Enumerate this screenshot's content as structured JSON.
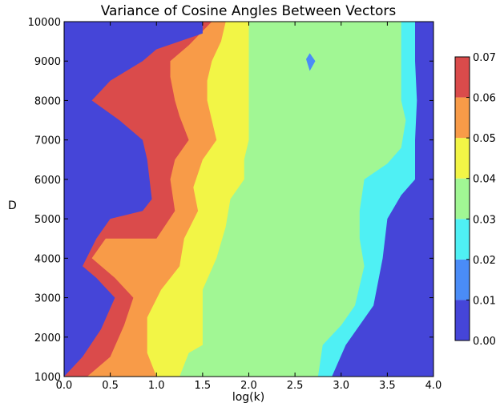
{
  "chart_data": {
    "type": "contourf",
    "title": "Variance of Cosine Angles Between Vectors",
    "xlabel": "log(k)",
    "ylabel": "D",
    "xlim": [
      0.0,
      4.0
    ],
    "ylim": [
      1000,
      10000
    ],
    "x_ticks": [
      "0.0",
      "0.5",
      "1.0",
      "1.5",
      "2.0",
      "2.5",
      "3.0",
      "3.5",
      "4.0"
    ],
    "y_ticks": [
      "1000",
      "2000",
      "3000",
      "4000",
      "5000",
      "6000",
      "7000",
      "8000",
      "9000",
      "10000"
    ],
    "colorbar": {
      "ticks": [
        "0.00",
        "0.01",
        "0.02",
        "0.03",
        "0.04",
        "0.05",
        "0.06",
        "0.07"
      ],
      "levels": [
        {
          "from": 0.0,
          "to": 0.01,
          "color": "#4545d8"
        },
        {
          "from": 0.01,
          "to": 0.02,
          "color": "#4a8cf7"
        },
        {
          "from": 0.02,
          "to": 0.03,
          "color": "#4ff0f4"
        },
        {
          "from": 0.03,
          "to": 0.04,
          "color": "#a1f794"
        },
        {
          "from": 0.04,
          "to": 0.05,
          "color": "#f2f546"
        },
        {
          "from": 0.05,
          "to": 0.06,
          "color": "#f89b48"
        },
        {
          "from": 0.06,
          "to": 0.07,
          "color": "#da4b4b"
        }
      ]
    },
    "boundaries": [
      {
        "between": [
          0.06,
          0.07
        ],
        "points": [
          [
            0.0,
            1000
          ],
          [
            0.2,
            1500
          ],
          [
            0.4,
            2200
          ],
          [
            0.55,
            3000
          ],
          [
            0.35,
            3500
          ],
          [
            0.2,
            3800
          ],
          [
            0.35,
            4500
          ],
          [
            0.5,
            5000
          ],
          [
            0.85,
            5200
          ],
          [
            0.95,
            5500
          ],
          [
            0.9,
            6500
          ],
          [
            0.85,
            7000
          ],
          [
            0.6,
            7500
          ],
          [
            0.3,
            8000
          ],
          [
            0.5,
            8500
          ],
          [
            0.85,
            9000
          ],
          [
            1.0,
            9300
          ],
          [
            1.5,
            9700
          ],
          [
            1.5,
            10000
          ]
        ]
      },
      {
        "between": [
          0.05,
          0.06
        ],
        "points": [
          [
            0.25,
            1000
          ],
          [
            0.5,
            1500
          ],
          [
            0.65,
            2300
          ],
          [
            0.75,
            3000
          ],
          [
            0.55,
            3500
          ],
          [
            0.3,
            4000
          ],
          [
            0.45,
            4500
          ],
          [
            1.0,
            4500
          ],
          [
            1.2,
            5200
          ],
          [
            1.15,
            6000
          ],
          [
            1.2,
            6500
          ],
          [
            1.35,
            7000
          ],
          [
            1.25,
            7600
          ],
          [
            1.2,
            8000
          ],
          [
            1.15,
            8600
          ],
          [
            1.15,
            9000
          ],
          [
            1.35,
            9400
          ],
          [
            1.6,
            10000
          ]
        ]
      },
      {
        "between": [
          0.04,
          0.05
        ],
        "points": [
          [
            1.0,
            1000
          ],
          [
            0.9,
            1600
          ],
          [
            0.9,
            2500
          ],
          [
            1.05,
            3200
          ],
          [
            1.25,
            3800
          ],
          [
            1.3,
            4500
          ],
          [
            1.45,
            5200
          ],
          [
            1.4,
            5800
          ],
          [
            1.5,
            6500
          ],
          [
            1.65,
            7000
          ],
          [
            1.6,
            7500
          ],
          [
            1.55,
            8000
          ],
          [
            1.55,
            8500
          ],
          [
            1.6,
            9000
          ],
          [
            1.7,
            9500
          ],
          [
            1.75,
            10000
          ]
        ]
      },
      {
        "between": [
          0.03,
          0.04
        ],
        "points": [
          [
            1.25,
            1000
          ],
          [
            1.35,
            1600
          ],
          [
            1.5,
            1800
          ],
          [
            1.5,
            2500
          ],
          [
            1.5,
            3200
          ],
          [
            1.65,
            4000
          ],
          [
            1.75,
            4800
          ],
          [
            1.8,
            5500
          ],
          [
            1.95,
            6000
          ],
          [
            1.95,
            6500
          ],
          [
            2.0,
            7000
          ],
          [
            2.0,
            8000
          ],
          [
            2.0,
            9000
          ],
          [
            2.0,
            10000
          ]
        ]
      },
      {
        "between": [
          0.02,
          0.03
        ],
        "points": [
          [
            2.75,
            1000
          ],
          [
            2.8,
            1800
          ],
          [
            3.0,
            2300
          ],
          [
            3.15,
            2800
          ],
          [
            3.25,
            3800
          ],
          [
            3.2,
            4500
          ],
          [
            3.2,
            5200
          ],
          [
            3.25,
            6000
          ],
          [
            3.5,
            6400
          ],
          [
            3.65,
            6800
          ],
          [
            3.7,
            7500
          ],
          [
            3.65,
            8000
          ],
          [
            3.65,
            9000
          ],
          [
            3.65,
            10000
          ]
        ]
      },
      {
        "between": [
          0.01,
          0.02
        ],
        "points": [
          [
            2.9,
            1000
          ],
          [
            3.05,
            1800
          ],
          [
            3.2,
            2300
          ],
          [
            3.35,
            2800
          ],
          [
            3.45,
            4000
          ],
          [
            3.5,
            5000
          ],
          [
            3.65,
            5600
          ],
          [
            3.8,
            6000
          ],
          [
            3.8,
            7000
          ],
          [
            3.82,
            8000
          ],
          [
            3.8,
            9000
          ],
          [
            3.8,
            10000
          ]
        ]
      }
    ],
    "islands": [
      {
        "level": [
          0.01,
          0.02
        ],
        "points": [
          [
            2.62,
            9050
          ],
          [
            2.66,
            9200
          ],
          [
            2.72,
            9000
          ],
          [
            2.66,
            8750
          ]
        ]
      }
    ]
  }
}
